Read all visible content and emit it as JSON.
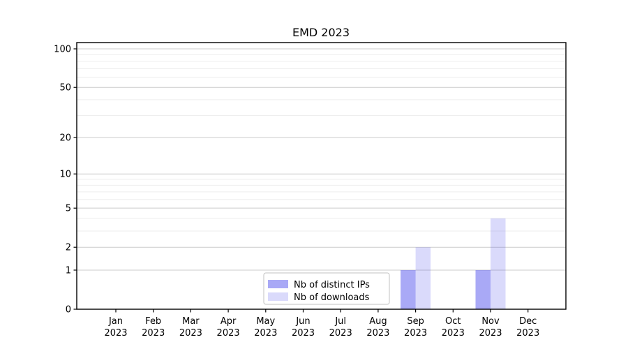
{
  "chart_data": {
    "type": "bar",
    "title": "EMD 2023",
    "months": [
      "Jan",
      "Feb",
      "Mar",
      "Apr",
      "May",
      "Jun",
      "Jul",
      "Aug",
      "Sep",
      "Oct",
      "Nov",
      "Dec"
    ],
    "year": "2023",
    "categories": [
      "Jan 2023",
      "Feb 2023",
      "Mar 2023",
      "Apr 2023",
      "May 2023",
      "Jun 2023",
      "Jul 2023",
      "Aug 2023",
      "Sep 2023",
      "Oct 2023",
      "Nov 2023",
      "Dec 2023"
    ],
    "series": [
      {
        "name": "Nb of distinct IPs",
        "color": "#aaaaf5",
        "base_color": "#5050ec",
        "fill_opacity": 0.49,
        "values": [
          0,
          0,
          0,
          0,
          0,
          0,
          0,
          0,
          1,
          0,
          1,
          0
        ]
      },
      {
        "name": "Nb of downloads",
        "color": "#dbdbf8",
        "base_color": "#5050ec",
        "fill_opacity": 0.21,
        "values": [
          0,
          0,
          0,
          0,
          0,
          0,
          0,
          0,
          2,
          0,
          4,
          0
        ]
      }
    ],
    "xlabel": "",
    "ylabel": "",
    "yscale": "log1p",
    "ylim": [
      0,
      112
    ],
    "y_major_ticks": [
      0,
      1,
      2,
      5,
      10,
      20,
      50,
      100
    ],
    "y_minor_gridlines": [
      3,
      4,
      6,
      7,
      8,
      9,
      30,
      40,
      60,
      70,
      80,
      90
    ],
    "grid": true,
    "legend_position": "lower-center-inside",
    "colors": {
      "background": "#ffffff",
      "axis": "#000000",
      "major_grid": "#cccccc",
      "minor_grid": "#eeeeee",
      "tick_text": "#000000"
    }
  }
}
